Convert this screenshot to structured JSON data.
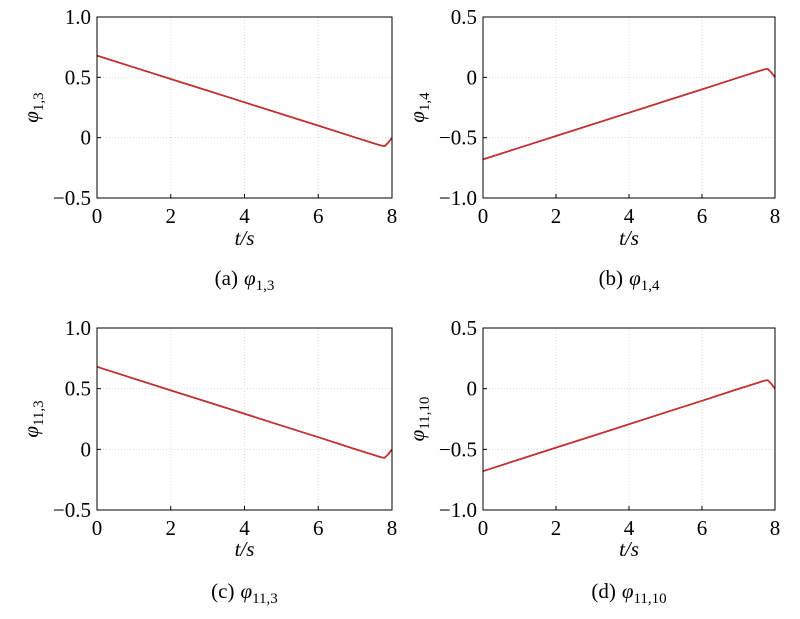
{
  "chart_data": [
    {
      "type": "line",
      "caption": "(a)",
      "caption_symbol": "φ",
      "caption_sub": "1,3",
      "xlabel": "t/s",
      "ylabel": "φ",
      "ylabel_sub": "1,3",
      "x": [
        0,
        1,
        2,
        3,
        4,
        5,
        6,
        7,
        7.5,
        7.7,
        7.8,
        7.9,
        8
      ],
      "values": [
        0.68,
        0.583,
        0.486,
        0.39,
        0.293,
        0.196,
        0.1,
        0.002,
        -0.046,
        -0.065,
        -0.07,
        -0.04,
        0
      ],
      "color": "#c0302f",
      "xlim": [
        0,
        8
      ],
      "ylim": [
        -0.5,
        1.0
      ],
      "xticks": [
        0,
        2,
        4,
        6,
        8
      ],
      "yticks": [
        {
          "value": -0.5,
          "label": "−0.5"
        },
        0,
        0.5,
        {
          "value": 1.0,
          "label": "1.0"
        }
      ],
      "grid": true
    },
    {
      "type": "line",
      "caption": "(b)",
      "caption_symbol": "φ",
      "caption_sub": "1,4",
      "xlabel": "t/s",
      "ylabel": "φ",
      "ylabel_sub": "1,4",
      "x": [
        0,
        1,
        2,
        3,
        4,
        5,
        6,
        7,
        7.5,
        7.7,
        7.8,
        7.9,
        8
      ],
      "values": [
        -0.68,
        -0.583,
        -0.486,
        -0.39,
        -0.293,
        -0.196,
        -0.1,
        -0.002,
        0.046,
        0.065,
        0.07,
        0.04,
        0
      ],
      "color": "#c0302f",
      "xlim": [
        0,
        8
      ],
      "ylim": [
        -1.0,
        0.5
      ],
      "xticks": [
        0,
        2,
        4,
        6,
        8
      ],
      "yticks": [
        {
          "value": -1.0,
          "label": "−1.0"
        },
        {
          "value": -0.5,
          "label": "−0.5"
        },
        0,
        0.5
      ],
      "grid": true
    },
    {
      "type": "line",
      "caption": "(c)",
      "caption_symbol": "φ",
      "caption_sub": "11,3",
      "xlabel": "t/s",
      "ylabel": "φ",
      "ylabel_sub": "11,3",
      "x": [
        0,
        1,
        2,
        3,
        4,
        5,
        6,
        7,
        7.5,
        7.7,
        7.8,
        7.9,
        8
      ],
      "values": [
        0.68,
        0.583,
        0.486,
        0.39,
        0.293,
        0.196,
        0.1,
        0.002,
        -0.046,
        -0.065,
        -0.07,
        -0.04,
        0
      ],
      "color": "#c0302f",
      "xlim": [
        0,
        8
      ],
      "ylim": [
        -0.5,
        1.0
      ],
      "xticks": [
        0,
        2,
        4,
        6,
        8
      ],
      "yticks": [
        {
          "value": -0.5,
          "label": "−0.5"
        },
        0,
        0.5,
        {
          "value": 1.0,
          "label": "1.0"
        }
      ],
      "grid": true
    },
    {
      "type": "line",
      "caption": "(d)",
      "caption_symbol": "φ",
      "caption_sub": "11,10",
      "xlabel": "t/s",
      "ylabel": "φ",
      "ylabel_sub": "11,10",
      "x": [
        0,
        1,
        2,
        3,
        4,
        5,
        6,
        7,
        7.5,
        7.7,
        7.8,
        7.9,
        8
      ],
      "values": [
        -0.68,
        -0.583,
        -0.486,
        -0.39,
        -0.293,
        -0.196,
        -0.1,
        -0.002,
        0.046,
        0.065,
        0.07,
        0.04,
        0
      ],
      "color": "#c0302f",
      "xlim": [
        0,
        8
      ],
      "ylim": [
        -1.0,
        0.5
      ],
      "xticks": [
        0,
        2,
        4,
        6,
        8
      ],
      "yticks": [
        {
          "value": -1.0,
          "label": "−1.0"
        },
        {
          "value": -0.5,
          "label": "−0.5"
        },
        0,
        0.5
      ],
      "grid": true
    }
  ]
}
